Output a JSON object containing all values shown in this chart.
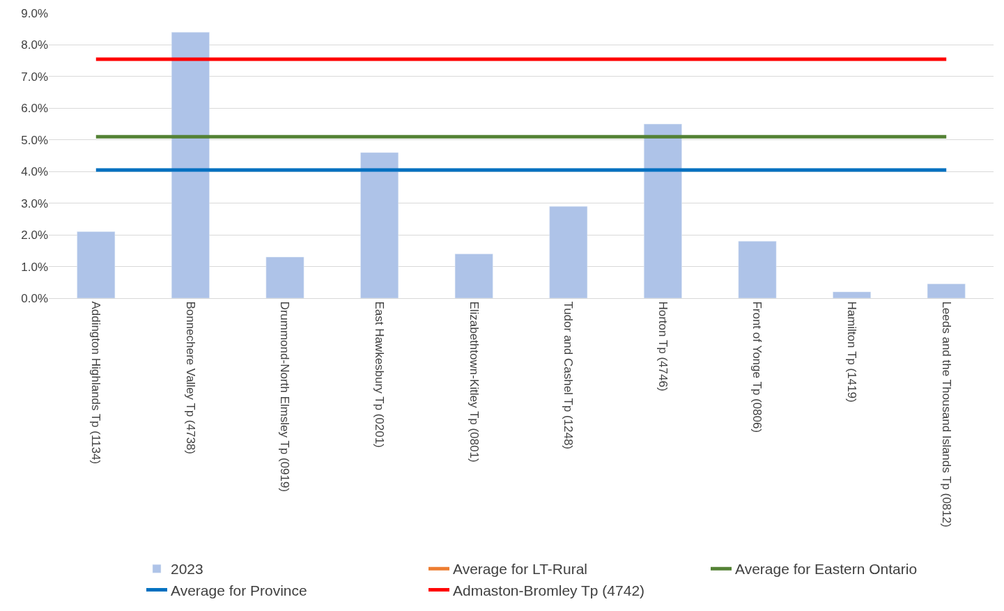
{
  "chart_data": {
    "type": "bar",
    "categories": [
      "Addington Highlands Tp (1134)",
      "Bonnechere Valley Tp (4738)",
      "Drummond-North Elmsley Tp (0919)",
      "East Hawkesbury Tp (0201)",
      "Elizabethtown-Kitley Tp (0801)",
      "Tudor and Cashel Tp (1248)",
      "Horton Tp (4746)",
      "Front of Yonge Tp (0806)",
      "Hamilton Tp (1419)",
      "Leeds and the Thousand Islands Tp (0812)"
    ],
    "series": [
      {
        "name": "2023",
        "color": "#aec3e8",
        "values": [
          2.1,
          8.4,
          1.3,
          4.6,
          1.4,
          2.9,
          5.5,
          1.8,
          0.2,
          0.45
        ]
      },
      {
        "name": "Average for LT-Rural",
        "type": "line",
        "color": "#ed7d31",
        "values": [
          null,
          null,
          null,
          null,
          null,
          null,
          null,
          null,
          null,
          null
        ]
      },
      {
        "name": "Average for Eastern Ontario",
        "type": "line",
        "color": "#548235",
        "values": [
          5.1,
          5.1,
          5.1,
          5.1,
          5.1,
          5.1,
          5.1,
          5.1,
          5.1,
          5.1
        ]
      },
      {
        "name": "Average for Province",
        "type": "line",
        "color": "#0070c0",
        "values": [
          4.05,
          4.05,
          4.05,
          4.05,
          4.05,
          4.05,
          4.05,
          4.05,
          4.05,
          4.05
        ]
      },
      {
        "name": "Admaston-Bromley Tp (4742)",
        "type": "line",
        "color": "#ff0000",
        "values": [
          7.55,
          7.55,
          7.55,
          7.55,
          7.55,
          7.55,
          7.55,
          7.55,
          7.55,
          7.55
        ]
      }
    ],
    "ylim": [
      0,
      9
    ],
    "yticks": [
      {
        "value": 0,
        "label": "0.0%"
      },
      {
        "value": 1,
        "label": "1.0%"
      },
      {
        "value": 2,
        "label": "2.0%"
      },
      {
        "value": 3,
        "label": "3.0%"
      },
      {
        "value": 4,
        "label": "4.0%"
      },
      {
        "value": 5,
        "label": "5.0%"
      },
      {
        "value": 6,
        "label": "6.0%"
      },
      {
        "value": 7,
        "label": "7.0%"
      },
      {
        "value": 8,
        "label": "8.0%"
      },
      {
        "value": 9,
        "label": "9.0%"
      }
    ],
    "grid": "y",
    "legend": "bottom",
    "marker": "none",
    "line_style": "solid"
  }
}
